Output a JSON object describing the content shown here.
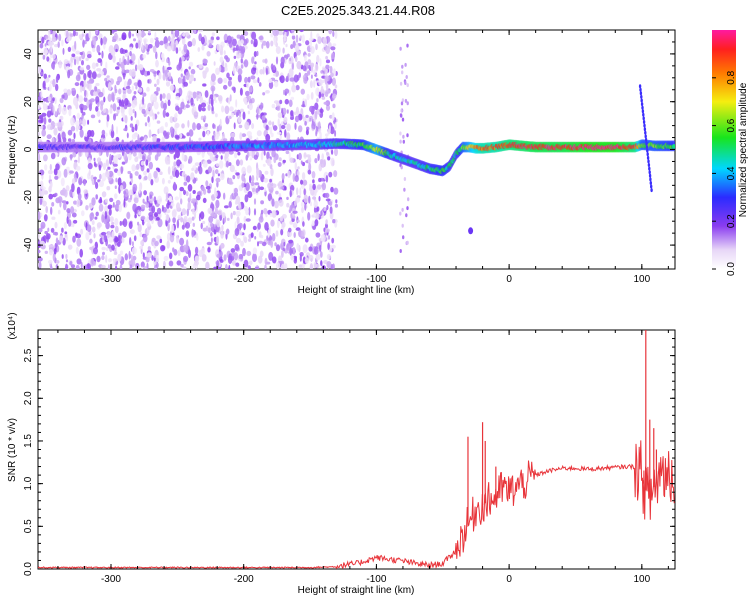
{
  "title": "C2E5.2025.343.21.44.R08",
  "chart_data": [
    {
      "type": "heatmap",
      "xlabel": "Height of straight line (km)",
      "ylabel": "Frequency (Hz)",
      "xlim": [
        -355,
        125
      ],
      "ylim": [
        -50,
        50
      ],
      "xticks": [
        -300,
        -200,
        -100,
        0,
        100
      ],
      "yticks": [
        -40,
        -20,
        0,
        20,
        40
      ],
      "colorbar": {
        "label": "Normalized spectral amplitude",
        "range": [
          0,
          1
        ],
        "ticks": [
          "0.0",
          "0.2",
          "0.4",
          "0.6",
          "0.8"
        ],
        "colormap": "rainbow (white → purple → blue → cyan → green → yellow → red → magenta)"
      },
      "ridge": {
        "x": [
          -355,
          -300,
          -250,
          -200,
          -150,
          -130,
          -110,
          -100,
          -90,
          -80,
          -70,
          -60,
          -50,
          -45,
          -40,
          -35,
          -30,
          -25,
          -20,
          -10,
          0,
          20,
          40,
          60,
          80,
          95,
          100,
          110,
          125
        ],
        "y": [
          1,
          1,
          1,
          1.5,
          2,
          2.5,
          2,
          0,
          -2,
          -4,
          -6,
          -8,
          -9,
          -7,
          -2,
          1,
          1,
          0.5,
          0.5,
          1,
          2,
          1,
          1,
          1,
          1,
          1,
          2,
          1.5,
          1.5
        ],
        "amplitude": [
          0.25,
          0.25,
          0.3,
          0.35,
          0.4,
          0.45,
          0.55,
          0.7,
          0.5,
          0.45,
          0.45,
          0.5,
          0.55,
          0.5,
          0.45,
          0.6,
          0.7,
          0.8,
          0.85,
          0.85,
          0.9,
          0.95,
          0.95,
          1.0,
          1.0,
          0.9,
          0.6,
          0.6,
          0.55
        ]
      },
      "noise_region_x": [
        -355,
        -130
      ]
    },
    {
      "type": "line",
      "xlabel": "Height of straight line (km)",
      "ylabel": "SNR (10 * v/v)",
      "y_multiplier": "(x10⁴)",
      "xlim": [
        -355,
        125
      ],
      "ylim": [
        0,
        2.8
      ],
      "xticks": [
        -300,
        -200,
        -100,
        0,
        100
      ],
      "yticks": [
        "0.0",
        "0.5",
        "1.0",
        "1.5",
        "2.0",
        "2.5"
      ],
      "series": [
        {
          "color": "#e8343a",
          "x": [
            -355,
            -300,
            -250,
            -200,
            -150,
            -130,
            -115,
            -100,
            -90,
            -80,
            -70,
            -60,
            -50,
            -40,
            -35,
            -30,
            -25,
            -20,
            -15,
            -10,
            -5,
            0,
            10,
            20,
            30,
            40,
            50,
            60,
            70,
            80,
            90,
            95,
            100,
            105,
            110,
            115,
            125
          ],
          "y": [
            0.01,
            0.01,
            0.01,
            0.01,
            0.01,
            0.02,
            0.05,
            0.12,
            0.1,
            0.08,
            0.05,
            0.03,
            0.05,
            0.2,
            0.4,
            0.55,
            0.7,
            0.75,
            0.8,
            0.85,
            0.95,
            0.9,
            1.0,
            1.1,
            1.15,
            1.18,
            1.18,
            1.17,
            1.18,
            1.19,
            1.2,
            1.2,
            1.1,
            0.8,
            1.0,
            1.15,
            1.12
          ],
          "spikes": [
            {
              "x": -31,
              "y": 1.55
            },
            {
              "x": -20,
              "y": 1.72
            },
            {
              "x": -18,
              "y": 1.5
            },
            {
              "x": -10,
              "y": 1.2
            },
            {
              "x": 101,
              "y": 1.0
            },
            {
              "x": 103,
              "y": 2.9
            },
            {
              "x": 106,
              "y": 1.75
            },
            {
              "x": 109,
              "y": 1.65
            },
            {
              "x": 111,
              "y": 1.4
            }
          ]
        }
      ]
    }
  ]
}
